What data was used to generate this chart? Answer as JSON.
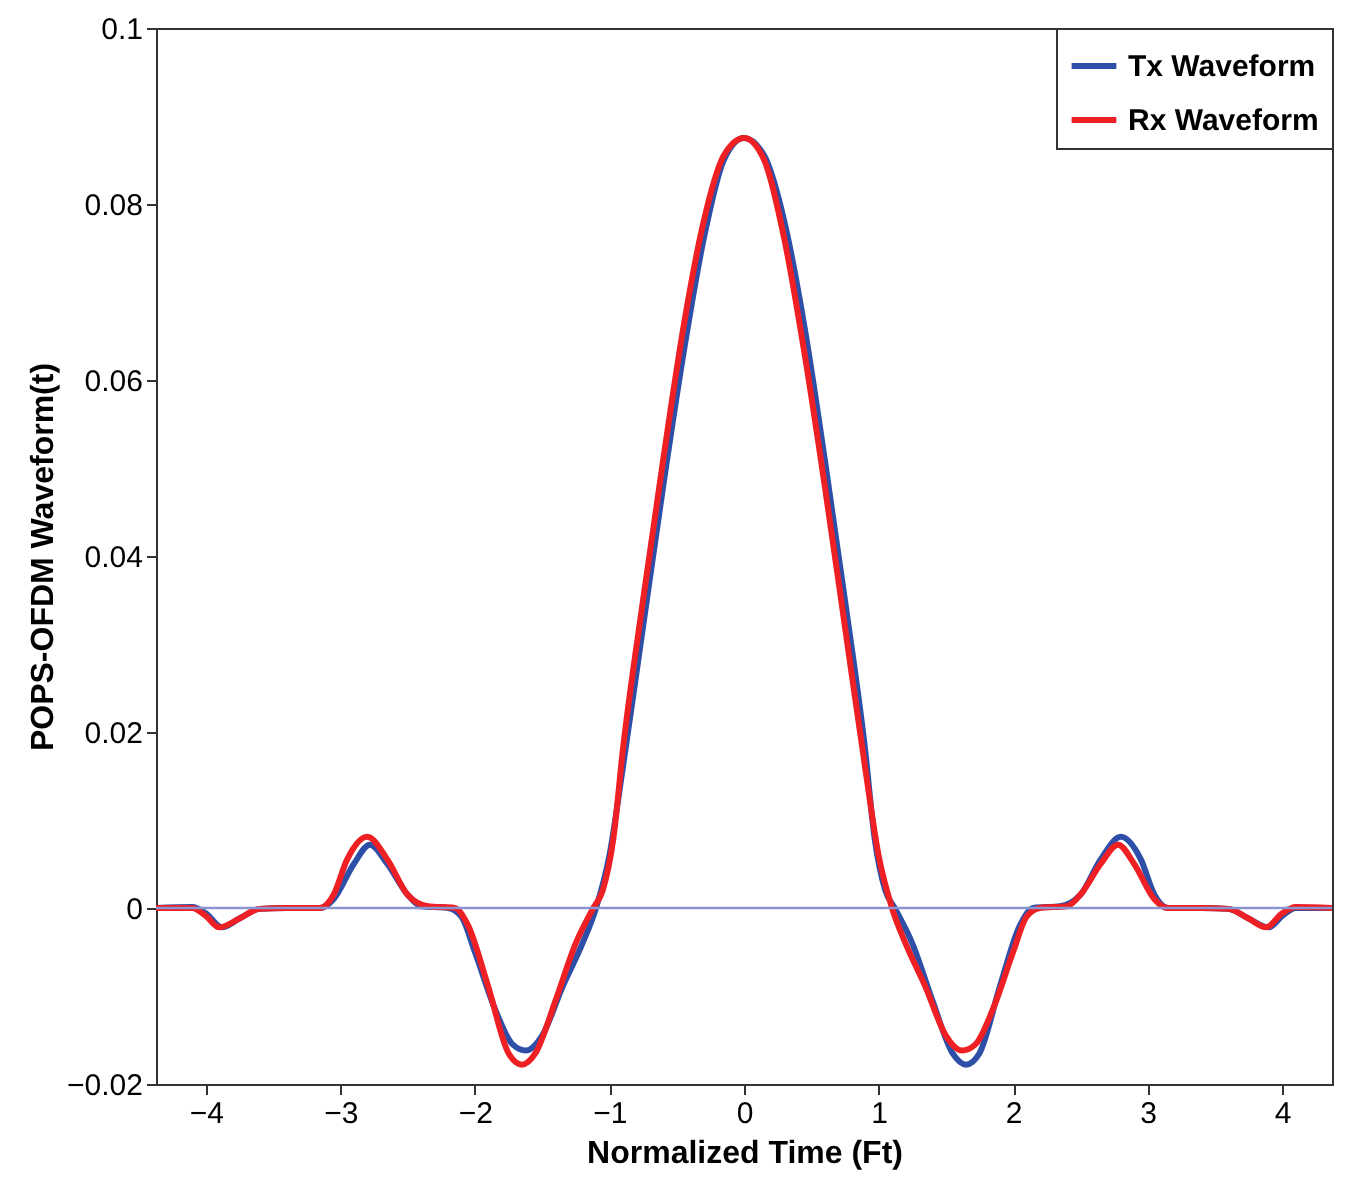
{
  "chart_data": {
    "type": "line",
    "xlabel": "Normalized Time (Ft)",
    "ylabel": "POPS-OFDM Waveform(t)",
    "xlim": [
      -4.37,
      4.37
    ],
    "ylim": [
      -0.02,
      0.1
    ],
    "xticks": [
      -4,
      -3,
      -2,
      -1,
      0,
      1,
      2,
      3,
      4
    ],
    "yticks": [
      -0.02,
      0,
      0.02,
      0.04,
      0.06,
      0.08,
      0.1
    ],
    "legend": "top right",
    "line_style": "solid",
    "marker": "none",
    "ref_lines": [
      {
        "axis": "y",
        "value": 0,
        "color": "#8a94d0"
      }
    ],
    "series": [
      {
        "name": "Tx Waveform",
        "color": "#2e4fa8",
        "x": [
          -4.37,
          -4.1,
          -4.0,
          -3.88,
          -3.75,
          -3.6,
          -3.4,
          -3.15,
          -3.05,
          -2.9,
          -2.78,
          -2.65,
          -2.5,
          -2.4,
          -2.2,
          -2.1,
          -2.0,
          -1.85,
          -1.72,
          -1.62,
          -1.5,
          -1.35,
          -1.2,
          -1.1,
          -1.0,
          -0.9,
          -0.75,
          -0.6,
          -0.45,
          -0.3,
          -0.15,
          0,
          0.15,
          0.3,
          0.45,
          0.6,
          0.75,
          0.9,
          0.97,
          1.05,
          1.12,
          1.25,
          1.4,
          1.55,
          1.65,
          1.75,
          1.9,
          2.05,
          2.15,
          2.35,
          2.5,
          2.65,
          2.8,
          2.95,
          3.05,
          3.15,
          3.4,
          3.6,
          3.75,
          3.9,
          4.0,
          4.1,
          4.37
        ],
        "values": [
          0,
          0.0001,
          -0.0006,
          -0.0022,
          -0.0012,
          -0.0001,
          0,
          0,
          0.001,
          0.005,
          0.0072,
          0.005,
          0.0015,
          0.0002,
          0,
          -0.001,
          -0.005,
          -0.0115,
          -0.0155,
          -0.0162,
          -0.0145,
          -0.009,
          -0.004,
          0,
          0.006,
          0.016,
          0.032,
          0.048,
          0.063,
          0.076,
          0.085,
          0.0875,
          0.0855,
          0.078,
          0.066,
          0.051,
          0.035,
          0.018,
          0.008,
          0.002,
          0,
          -0.004,
          -0.0105,
          -0.0165,
          -0.0178,
          -0.0165,
          -0.009,
          -0.002,
          0,
          0.0002,
          0.0015,
          0.0055,
          0.0081,
          0.0055,
          0.0015,
          0,
          0,
          -0.0001,
          -0.0012,
          -0.0022,
          -0.0009,
          0,
          0
        ]
      },
      {
        "name": "Rx Waveform",
        "color": "#ee2024",
        "x": [
          -4.37,
          -4.1,
          -4.0,
          -3.9,
          -3.75,
          -3.6,
          -3.4,
          -3.15,
          -3.05,
          -2.95,
          -2.8,
          -2.65,
          -2.5,
          -2.35,
          -2.15,
          -2.05,
          -1.9,
          -1.75,
          -1.65,
          -1.55,
          -1.4,
          -1.25,
          -1.12,
          -1.05,
          -0.97,
          -0.9,
          -0.75,
          -0.6,
          -0.45,
          -0.3,
          -0.15,
          0,
          0.15,
          0.3,
          0.45,
          0.6,
          0.75,
          0.9,
          1.0,
          1.1,
          1.2,
          1.35,
          1.5,
          1.62,
          1.72,
          1.85,
          2.0,
          2.1,
          2.2,
          2.4,
          2.5,
          2.65,
          2.78,
          2.9,
          3.05,
          3.15,
          3.4,
          3.6,
          3.75,
          3.88,
          4.0,
          4.1,
          4.37
        ],
        "values": [
          0,
          0,
          -0.0009,
          -0.0022,
          -0.0012,
          -0.0001,
          0,
          0,
          0.0015,
          0.0055,
          0.0081,
          0.0055,
          0.0015,
          0.0002,
          0,
          -0.002,
          -0.009,
          -0.0165,
          -0.0178,
          -0.0165,
          -0.0105,
          -0.004,
          0,
          0.002,
          0.008,
          0.018,
          0.035,
          0.051,
          0.066,
          0.078,
          0.0855,
          0.0875,
          0.085,
          0.076,
          0.063,
          0.048,
          0.032,
          0.016,
          0.006,
          0,
          -0.004,
          -0.009,
          -0.0145,
          -0.0162,
          -0.0155,
          -0.0115,
          -0.005,
          -0.001,
          0,
          0.0002,
          0.0015,
          0.005,
          0.0072,
          0.005,
          0.001,
          0,
          0,
          -0.0001,
          -0.0012,
          -0.0022,
          -0.0006,
          0.0001,
          0
        ]
      }
    ]
  }
}
